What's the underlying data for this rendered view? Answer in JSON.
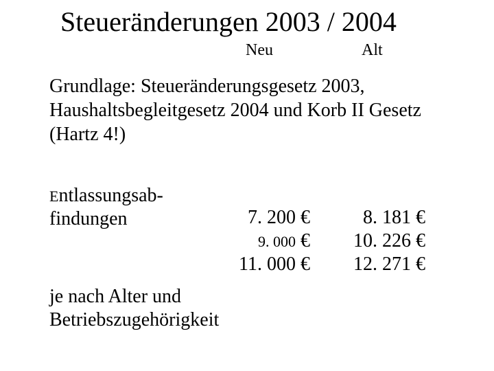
{
  "colors": {
    "background": "#ffffff",
    "text": "#000000"
  },
  "typography": {
    "font_family": "Times New Roman",
    "title_fontsize_pt": 30,
    "header_fontsize_pt": 18,
    "body_fontsize_pt": 21,
    "small_fontsize_pt": 16
  },
  "title": "Steueränderungen 2003 / 2004",
  "columns": {
    "neu_label": "Neu",
    "alt_label": "Alt"
  },
  "intro": "Grundlage: Steueränderungsgesetz 2003, Haushaltsbegleitgesetz 2004 und Korb II Gesetz (Hartz 4!)",
  "section": {
    "label_line1_prefix": "E",
    "label_line1_rest": "ntlassungsab-",
    "label_line2": "findungen",
    "footnote_line1": "je nach Alter und",
    "footnote_line2": "Betriebszugehörigkeit",
    "neu": {
      "v1": "7. 200 €",
      "v2_num": "9. 000",
      "v2_cur": " €",
      "v3": "11. 000 €"
    },
    "alt": {
      "v1": "8. 181 €",
      "v2": "10. 226 €",
      "v3": "12. 271 €"
    }
  }
}
